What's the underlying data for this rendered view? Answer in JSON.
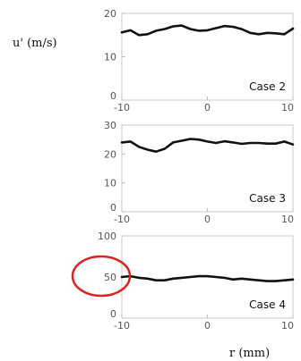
{
  "figure": {
    "ylabel": "u' (m/s)",
    "xlabel": "r (mm)"
  },
  "highlight": {
    "color": "#dd2222"
  },
  "chart_data": [
    {
      "type": "line",
      "annotation": "Case 2",
      "xlim": [
        -10,
        10
      ],
      "ylim": [
        0,
        20
      ],
      "xticks": [
        "-10",
        "0",
        "10"
      ],
      "yticks": [
        "0",
        "10",
        "20"
      ],
      "x": [
        -10,
        -9,
        -8,
        -7,
        -6,
        -5,
        -4,
        -3,
        -2,
        -1,
        0,
        1,
        2,
        3,
        4,
        5,
        6,
        7,
        8,
        9,
        10
      ],
      "values": [
        15.6,
        16.1,
        15.0,
        15.2,
        16.0,
        16.4,
        17.0,
        17.2,
        16.4,
        16.0,
        16.1,
        16.6,
        17.1,
        16.9,
        16.4,
        15.5,
        15.2,
        15.5,
        15.4,
        15.2,
        16.5
      ]
    },
    {
      "type": "line",
      "annotation": "Case 3",
      "xlim": [
        -10,
        10
      ],
      "ylim": [
        0,
        30
      ],
      "xticks": [
        "-10",
        "0",
        "10"
      ],
      "yticks": [
        "0",
        "10",
        "20",
        "30"
      ],
      "x": [
        -10,
        -9,
        -8,
        -7,
        -6,
        -5,
        -4,
        -3,
        -2,
        -1,
        0,
        1,
        2,
        3,
        4,
        5,
        6,
        7,
        8,
        9,
        10
      ],
      "values": [
        24.0,
        24.3,
        22.5,
        21.5,
        20.8,
        21.8,
        24.0,
        24.6,
        25.2,
        25.0,
        24.3,
        23.8,
        24.4,
        24.0,
        23.5,
        23.8,
        23.8,
        23.6,
        23.6,
        24.3,
        23.3
      ]
    },
    {
      "type": "line",
      "annotation": "Case 4",
      "xlim": [
        -10,
        10
      ],
      "ylim": [
        0,
        100
      ],
      "xticks": [
        "-10",
        "0",
        "10"
      ],
      "yticks": [
        "0",
        "50",
        "100"
      ],
      "x": [
        -10,
        -9,
        -8,
        -7,
        -6,
        -5,
        -4,
        -3,
        -2,
        -1,
        0,
        1,
        2,
        3,
        4,
        5,
        6,
        7,
        8,
        9,
        10
      ],
      "values": [
        50,
        51,
        49,
        48,
        46,
        46,
        48,
        49,
        50,
        51,
        51,
        50,
        49,
        47,
        48,
        47,
        46,
        45,
        45,
        46,
        47
      ]
    }
  ]
}
